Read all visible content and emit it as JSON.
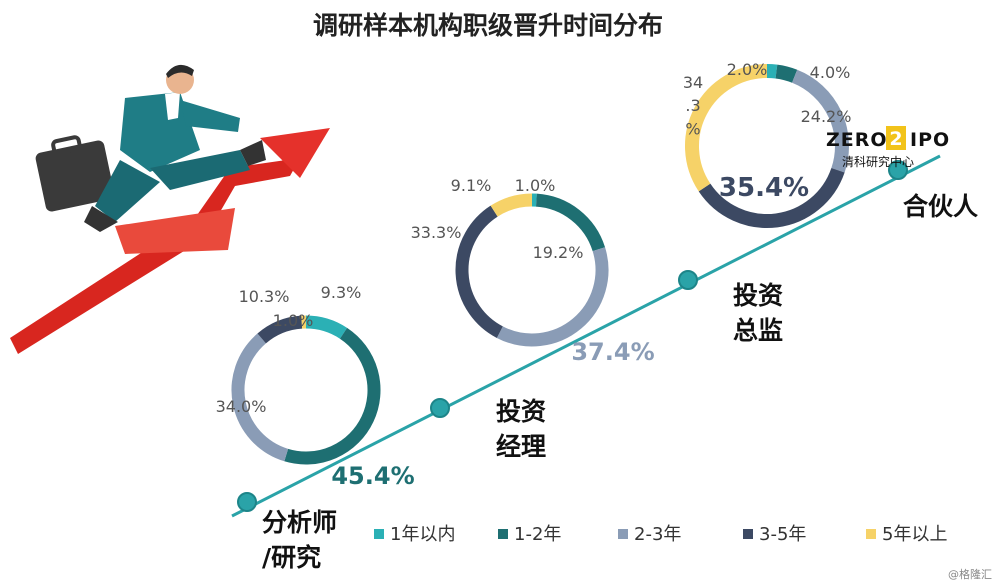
{
  "title": "调研样本机构职级晋升时间分布",
  "colors": {
    "series": [
      "#2bb0b5",
      "#1e6f72",
      "#8a9cb6",
      "#3c4963",
      "#f6d268"
    ],
    "trend_line": "#2aa3a8",
    "arrow": "#e5312b"
  },
  "chart_data": {
    "type": "pie",
    "variant": "donut",
    "title": "调研样本机构职级晋升时间分布",
    "series_names": [
      "1年以内",
      "1-2年",
      "2-3年",
      "3-5年",
      "5年以上"
    ],
    "legend_position": "bottom-right",
    "charts": [
      {
        "category": "分析师/研究",
        "label_lines": [
          "分析师",
          "/研究"
        ],
        "values": [
          9.3,
          45.4,
          34.0,
          10.3,
          1.0
        ],
        "value_labels": [
          "9.3%",
          "45.4%",
          "34.0%",
          "10.3%",
          "1.0%"
        ]
      },
      {
        "category": "投资经理",
        "label_lines": [
          "投资",
          "经理"
        ],
        "values": [
          1.0,
          19.2,
          37.4,
          33.3,
          9.1
        ],
        "value_labels": [
          "1.0%",
          "19.2%",
          "37.4%",
          "33.3%",
          "9.1%"
        ]
      },
      {
        "category": "投资总监",
        "label_lines": [
          "投资",
          "总监"
        ],
        "values": [
          2.0,
          4.0,
          24.2,
          35.4,
          34.3
        ],
        "value_labels": [
          "2.0%",
          "4.0%",
          "24.2%",
          "35.4%",
          "34\n.3\n%"
        ]
      },
      {
        "category": "合伙人",
        "label_lines": [
          "合伙人"
        ],
        "values": [],
        "value_labels": []
      }
    ]
  },
  "logo": {
    "brand": "ZERO2IPO",
    "brand_left": "ZERO",
    "brand_mid": "2",
    "brand_right": "IPO",
    "sub": "清科研究中心"
  },
  "watermark": "@格隆汇"
}
